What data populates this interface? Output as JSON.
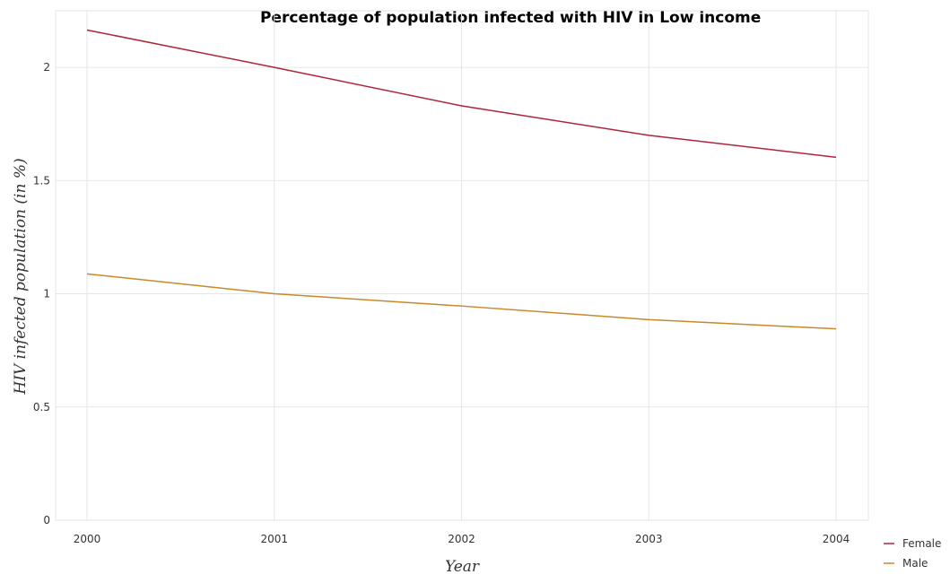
{
  "chart_data": {
    "type": "line",
    "title": "Percentage of population infected with HIV in Low income",
    "xlabel": "Year",
    "ylabel": "HIV infected population (in %)",
    "categories": [
      "2000",
      "2001",
      "2002",
      "2003",
      "2004"
    ],
    "series": [
      {
        "name": "Female",
        "color": "#b0243a",
        "values": [
          2.165,
          2.0,
          1.83,
          1.7,
          1.603
        ]
      },
      {
        "name": "Male",
        "color": "#c8892a",
        "values": [
          1.088,
          1.0,
          0.946,
          0.886,
          0.845
        ]
      }
    ],
    "ylim": [
      0,
      2.25
    ],
    "yticks": [
      0,
      0.5,
      1,
      1.5,
      2
    ],
    "ytick_labels": [
      "0",
      "0.5",
      "1",
      "1.5",
      "2"
    ],
    "grid": true,
    "legend_position": "bottom-right"
  }
}
